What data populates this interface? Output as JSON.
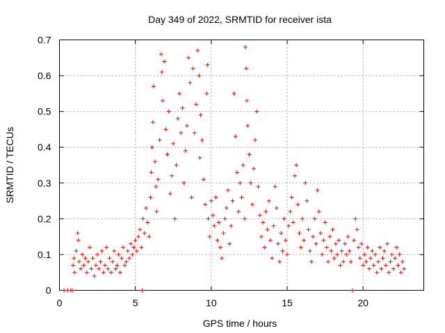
{
  "chart_data": {
    "type": "scatter",
    "title": "Day 349 of 2022, SRMTID for receiver ista",
    "xlabel": "GPS time / hours",
    "ylabel": "SRMTID / TECUs",
    "xlim": [
      0,
      24
    ],
    "ylim": [
      0,
      0.7
    ],
    "xticks": [
      "0",
      "5",
      "10",
      "15",
      "20"
    ],
    "yticks": [
      "0",
      "0.1",
      "0.2",
      "0.3",
      "0.4",
      "0.5",
      "0.6",
      "0.7"
    ],
    "grid": true,
    "marker": "+",
    "color": "#ff0000",
    "series": [
      {
        "name": "SRMTID",
        "points": [
          [
            0.3,
            0.0
          ],
          [
            0.55,
            0.0
          ],
          [
            0.75,
            0.0
          ],
          [
            0.85,
            0.0
          ],
          [
            5.45,
            0.0
          ],
          [
            19.3,
            0.0
          ],
          [
            0.9,
            0.07
          ],
          [
            0.95,
            0.09
          ],
          [
            1.0,
            0.05
          ],
          [
            1.1,
            0.11
          ],
          [
            1.2,
            0.16
          ],
          [
            1.25,
            0.14
          ],
          [
            1.3,
            0.08
          ],
          [
            1.4,
            0.06
          ],
          [
            1.5,
            0.1
          ],
          [
            1.6,
            0.07
          ],
          [
            1.7,
            0.09
          ],
          [
            1.8,
            0.05
          ],
          [
            1.9,
            0.08
          ],
          [
            2.0,
            0.12
          ],
          [
            2.1,
            0.06
          ],
          [
            2.2,
            0.09
          ],
          [
            2.3,
            0.04
          ],
          [
            2.4,
            0.07
          ],
          [
            2.5,
            0.1
          ],
          [
            2.6,
            0.06
          ],
          [
            2.7,
            0.08
          ],
          [
            2.8,
            0.11
          ],
          [
            2.9,
            0.05
          ],
          [
            3.0,
            0.07
          ],
          [
            3.1,
            0.12
          ],
          [
            3.2,
            0.06
          ],
          [
            3.3,
            0.09
          ],
          [
            3.4,
            0.05
          ],
          [
            3.5,
            0.08
          ],
          [
            3.6,
            0.11
          ],
          [
            3.7,
            0.06
          ],
          [
            3.8,
            0.07
          ],
          [
            3.9,
            0.1
          ],
          [
            4.0,
            0.05
          ],
          [
            4.1,
            0.09
          ],
          [
            4.2,
            0.12
          ],
          [
            4.3,
            0.07
          ],
          [
            4.4,
            0.08
          ],
          [
            4.5,
            0.11
          ],
          [
            4.6,
            0.09
          ],
          [
            4.7,
            0.13
          ],
          [
            4.8,
            0.1
          ],
          [
            4.9,
            0.12
          ],
          [
            5.0,
            0.14
          ],
          [
            5.1,
            0.11
          ],
          [
            5.2,
            0.15
          ],
          [
            5.3,
            0.17
          ],
          [
            5.4,
            0.12
          ],
          [
            5.5,
            0.2
          ],
          [
            5.6,
            0.16
          ],
          [
            5.7,
            0.23
          ],
          [
            5.8,
            0.19
          ],
          [
            5.9,
            0.15
          ],
          [
            6.0,
            0.26
          ],
          [
            6.05,
            0.33
          ],
          [
            6.1,
            0.4
          ],
          [
            6.15,
            0.47
          ],
          [
            6.2,
            0.57
          ],
          [
            6.3,
            0.36
          ],
          [
            6.35,
            0.29
          ],
          [
            6.4,
            0.22
          ],
          [
            6.5,
            0.31
          ],
          [
            6.6,
            0.42
          ],
          [
            6.7,
            0.66
          ],
          [
            6.75,
            0.61
          ],
          [
            6.8,
            0.53
          ],
          [
            6.9,
            0.64
          ],
          [
            7.0,
            0.45
          ],
          [
            7.1,
            0.38
          ],
          [
            7.2,
            0.5
          ],
          [
            7.3,
            0.27
          ],
          [
            7.4,
            0.32
          ],
          [
            7.5,
            0.41
          ],
          [
            7.6,
            0.2
          ],
          [
            7.7,
            0.35
          ],
          [
            7.8,
            0.48
          ],
          [
            7.9,
            0.55
          ],
          [
            8.0,
            0.44
          ],
          [
            8.1,
            0.51
          ],
          [
            8.2,
            0.3
          ],
          [
            8.3,
            0.39
          ],
          [
            8.4,
            0.46
          ],
          [
            8.5,
            0.65
          ],
          [
            8.6,
            0.58
          ],
          [
            8.7,
            0.26
          ],
          [
            8.8,
            0.62
          ],
          [
            8.9,
            0.44
          ],
          [
            9.0,
            0.52
          ],
          [
            9.1,
            0.67
          ],
          [
            9.2,
            0.6
          ],
          [
            9.25,
            0.37
          ],
          [
            9.3,
            0.49
          ],
          [
            9.4,
            0.42
          ],
          [
            9.5,
            0.31
          ],
          [
            9.6,
            0.24
          ],
          [
            9.7,
            0.55
          ],
          [
            9.75,
            0.63
          ],
          [
            9.8,
            0.2
          ],
          [
            9.9,
            0.15
          ],
          [
            10.0,
            0.25
          ],
          [
            10.1,
            0.21
          ],
          [
            10.2,
            0.18
          ],
          [
            10.3,
            0.26
          ],
          [
            10.4,
            0.14
          ],
          [
            10.5,
            0.19
          ],
          [
            10.6,
            0.12
          ],
          [
            10.7,
            0.09
          ],
          [
            10.8,
            0.16
          ],
          [
            10.9,
            0.2
          ],
          [
            11.0,
            0.23
          ],
          [
            11.1,
            0.28
          ],
          [
            11.2,
            0.13
          ],
          [
            11.3,
            0.18
          ],
          [
            11.4,
            0.25
          ],
          [
            11.5,
            0.55
          ],
          [
            11.6,
            0.43
          ],
          [
            11.7,
            0.33
          ],
          [
            11.8,
            0.22
          ],
          [
            11.9,
            0.3
          ],
          [
            12.0,
            0.26
          ],
          [
            12.1,
            0.35
          ],
          [
            12.2,
            0.2
          ],
          [
            12.25,
            0.68
          ],
          [
            12.3,
            0.62
          ],
          [
            12.35,
            0.53
          ],
          [
            12.4,
            0.46
          ],
          [
            12.5,
            0.38
          ],
          [
            12.6,
            0.3
          ],
          [
            12.7,
            0.24
          ],
          [
            12.8,
            0.34
          ],
          [
            12.9,
            0.42
          ],
          [
            13.0,
            0.5
          ],
          [
            13.1,
            0.29
          ],
          [
            13.2,
            0.21
          ],
          [
            13.3,
            0.15
          ],
          [
            13.4,
            0.19
          ],
          [
            13.5,
            0.12
          ],
          [
            13.6,
            0.22
          ],
          [
            13.7,
            0.17
          ],
          [
            13.8,
            0.25
          ],
          [
            13.9,
            0.14
          ],
          [
            14.0,
            0.09
          ],
          [
            14.1,
            0.18
          ],
          [
            14.2,
            0.29
          ],
          [
            14.3,
            0.23
          ],
          [
            14.4,
            0.13
          ],
          [
            14.5,
            0.08
          ],
          [
            14.6,
            0.16
          ],
          [
            14.7,
            0.11
          ],
          [
            14.8,
            0.2
          ],
          [
            14.9,
            0.14
          ],
          [
            15.0,
            0.1
          ],
          [
            15.1,
            0.18
          ],
          [
            15.2,
            0.22
          ],
          [
            15.3,
            0.26
          ],
          [
            15.4,
            0.19
          ],
          [
            15.5,
            0.32
          ],
          [
            15.6,
            0.35
          ],
          [
            15.7,
            0.24
          ],
          [
            15.8,
            0.16
          ],
          [
            15.9,
            0.12
          ],
          [
            16.0,
            0.2
          ],
          [
            16.1,
            0.14
          ],
          [
            16.2,
            0.3
          ],
          [
            16.3,
            0.25
          ],
          [
            16.4,
            0.17
          ],
          [
            16.5,
            0.11
          ],
          [
            16.6,
            0.08
          ],
          [
            16.7,
            0.15
          ],
          [
            16.8,
            0.2
          ],
          [
            16.9,
            0.13
          ],
          [
            17.0,
            0.28
          ],
          [
            17.1,
            0.22
          ],
          [
            17.2,
            0.16
          ],
          [
            17.3,
            0.1
          ],
          [
            17.4,
            0.14
          ],
          [
            17.5,
            0.19
          ],
          [
            17.6,
            0.12
          ],
          [
            17.7,
            0.08
          ],
          [
            17.8,
            0.15
          ],
          [
            17.9,
            0.11
          ],
          [
            18.0,
            0.17
          ],
          [
            18.1,
            0.09
          ],
          [
            18.2,
            0.13
          ],
          [
            18.3,
            0.1
          ],
          [
            18.4,
            0.14
          ],
          [
            18.5,
            0.07
          ],
          [
            18.6,
            0.11
          ],
          [
            18.7,
            0.08
          ],
          [
            18.8,
            0.13
          ],
          [
            18.9,
            0.1
          ],
          [
            19.0,
            0.15
          ],
          [
            19.1,
            0.11
          ],
          [
            19.2,
            0.08
          ],
          [
            19.4,
            0.14
          ],
          [
            19.5,
            0.2
          ],
          [
            19.6,
            0.17
          ],
          [
            19.7,
            0.12
          ],
          [
            19.8,
            0.09
          ],
          [
            19.9,
            0.13
          ],
          [
            20.0,
            0.07
          ],
          [
            20.1,
            0.1
          ],
          [
            20.2,
            0.08
          ],
          [
            20.3,
            0.12
          ],
          [
            20.4,
            0.06
          ],
          [
            20.5,
            0.09
          ],
          [
            20.6,
            0.11
          ],
          [
            20.7,
            0.07
          ],
          [
            20.8,
            0.1
          ],
          [
            20.9,
            0.05
          ],
          [
            21.0,
            0.08
          ],
          [
            21.1,
            0.12
          ],
          [
            21.2,
            0.06
          ],
          [
            21.3,
            0.09
          ],
          [
            21.4,
            0.11
          ],
          [
            21.5,
            0.07
          ],
          [
            21.6,
            0.13
          ],
          [
            21.7,
            0.05
          ],
          [
            21.8,
            0.08
          ],
          [
            21.9,
            0.1
          ],
          [
            22.0,
            0.06
          ],
          [
            22.1,
            0.09
          ],
          [
            22.2,
            0.12
          ],
          [
            22.3,
            0.07
          ],
          [
            22.4,
            0.1
          ],
          [
            22.5,
            0.05
          ],
          [
            22.6,
            0.08
          ],
          [
            22.7,
            0.06
          ]
        ]
      }
    ]
  }
}
